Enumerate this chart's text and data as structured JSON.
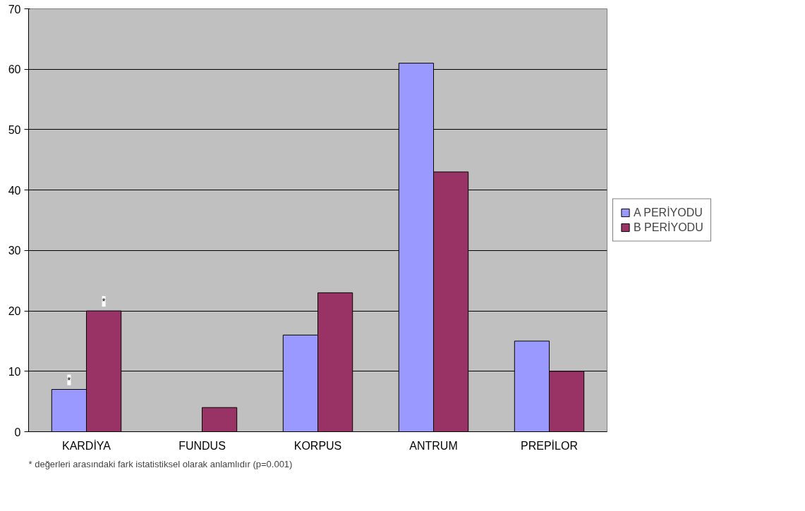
{
  "chart_data": {
    "type": "bar",
    "categories": [
      "KARDİYA",
      "FUNDUS",
      "KORPUS",
      "ANTRUM",
      "PREPİLOR"
    ],
    "series": [
      {
        "name": "A PERİYODU",
        "color": "#9999ff",
        "values": [
          7,
          null,
          16,
          61,
          15
        ]
      },
      {
        "name": "B PERİYODU",
        "color": "#993366",
        "values": [
          20,
          4,
          23,
          43,
          10
        ]
      }
    ],
    "ylim": [
      0,
      70
    ],
    "yticks": [
      0,
      10,
      20,
      30,
      40,
      50,
      60,
      70
    ],
    "grid": "y",
    "legend": "right",
    "annotations": [
      {
        "text": "*",
        "x": "KARDİYA",
        "y": 7
      },
      {
        "text": "*",
        "x": "KARDİYA",
        "y": 20
      },
      "* değerleri arasındaki fark istatistiksel olarak anlamlıdır (p=0.001)"
    ]
  }
}
